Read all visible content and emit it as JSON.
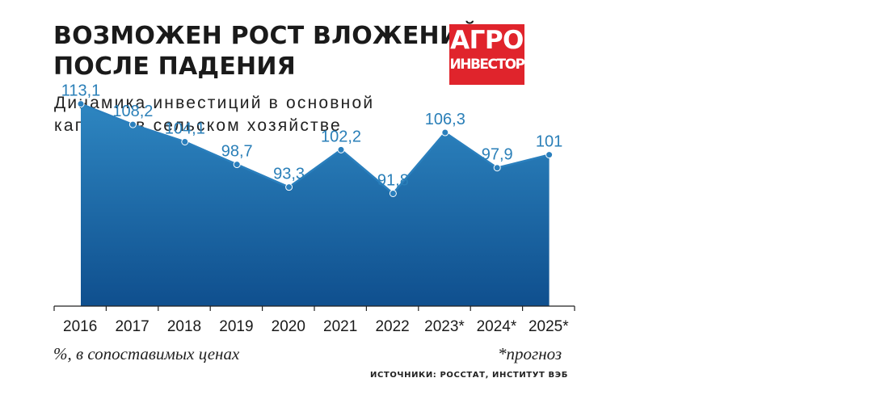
{
  "title_lines": [
    "ВОЗМОЖЕН РОСТ ВЛОЖЕНИЙ",
    "ПОСЛЕ ПАДЕНИЯ"
  ],
  "subtitle_lines": [
    "Динамика инвестиций в основной",
    "капитал в сельском хозяйстве"
  ],
  "logo": {
    "line1": "АГРО",
    "line2": "ИНВЕСТОР",
    "background": "#e0242c"
  },
  "footnotes": {
    "units": "%, в сопоставимых ценах",
    "forecast": "*прогноз"
  },
  "sources": "ИСТОЧНИКИ: РОССТАТ, ИНСТИТУТ ВЭБ",
  "chart_data": {
    "type": "area",
    "categories": [
      "2016",
      "2017",
      "2018",
      "2019",
      "2020",
      "2021",
      "2022",
      "2023*",
      "2024*",
      "2025*"
    ],
    "values": [
      113.1,
      108.2,
      104.1,
      98.7,
      93.3,
      102.2,
      91.8,
      106.3,
      97.9,
      101
    ],
    "data_labels": [
      "113,1",
      "108,2",
      "104,1",
      "98,7",
      "93,3",
      "102,2",
      "91,8",
      "106,3",
      "97,9",
      "101"
    ],
    "ylim": [
      65,
      120
    ],
    "grid": false,
    "colors": {
      "fill_top": "#2e86c1",
      "fill_bottom": "#0f4f8e",
      "line": "#2a7fbd",
      "label": "#2a7fb8"
    }
  }
}
